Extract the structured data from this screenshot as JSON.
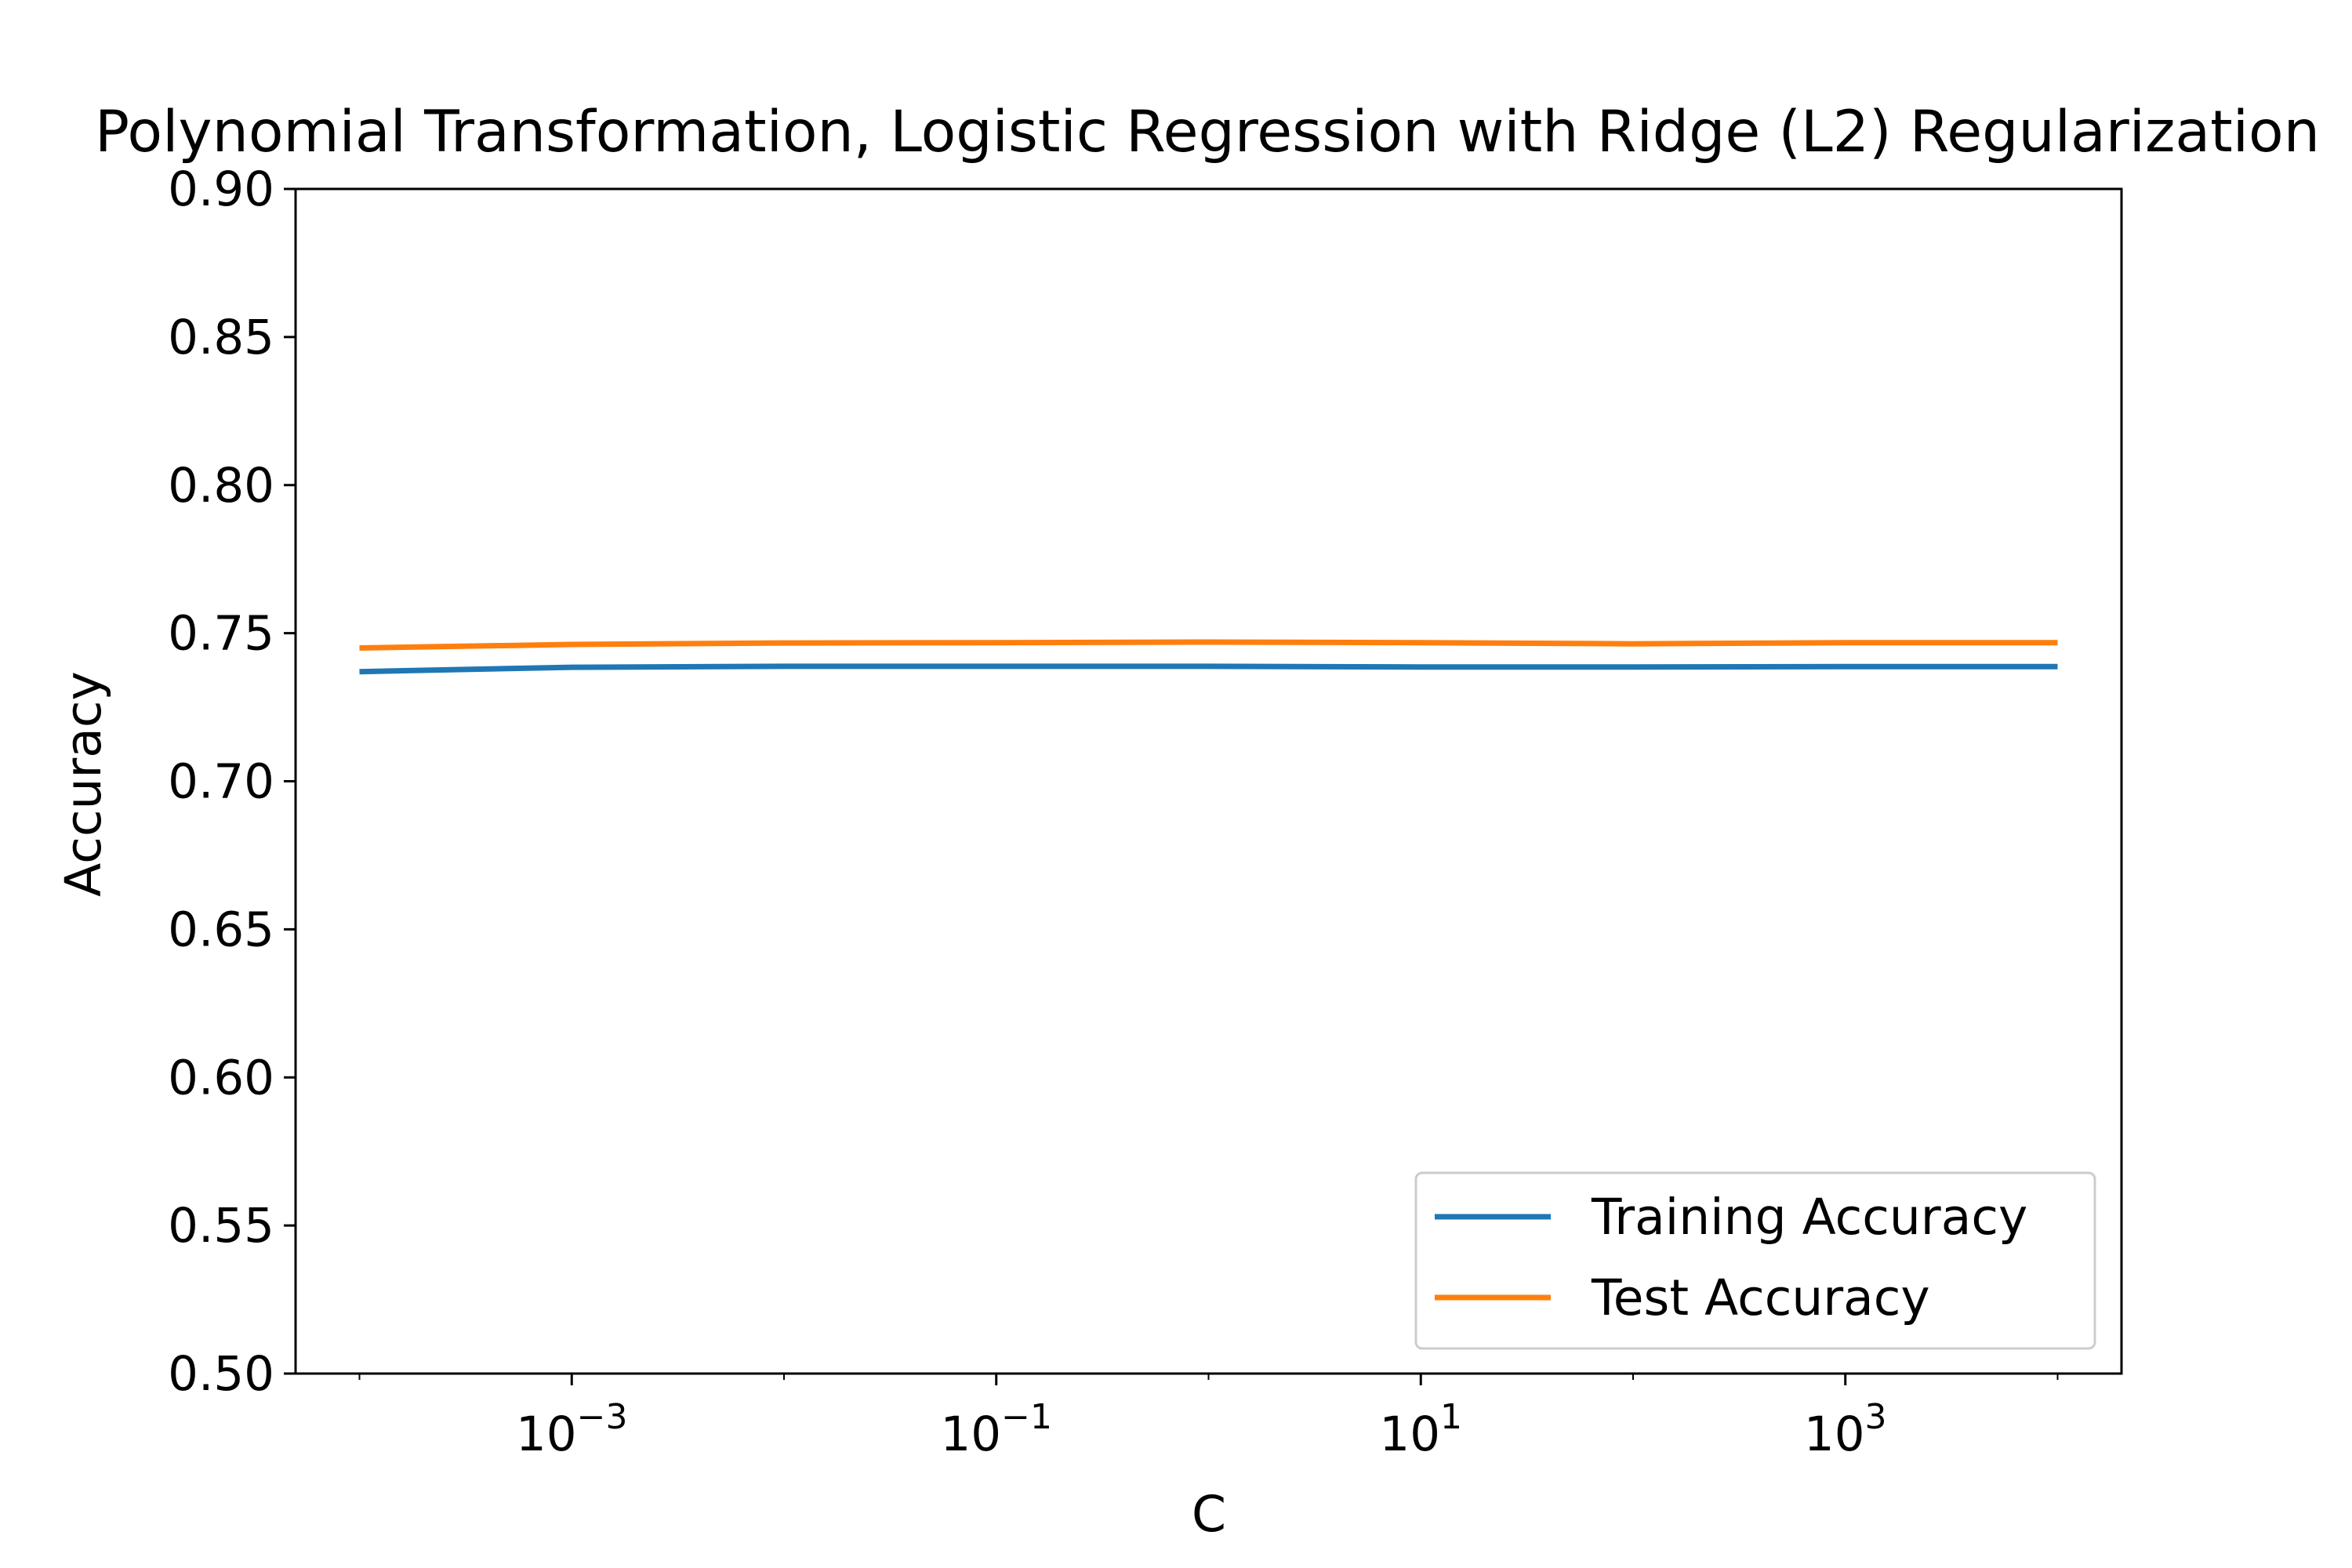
{
  "chart_data": {
    "type": "line",
    "title": "Polynomial Transformation, Logistic Regression with Ridge (L2) Regularization",
    "xlabel": "C",
    "ylabel": "Accuracy",
    "xscale": "log",
    "xlim": [
      5e-05,
      20000
    ],
    "ylim": [
      0.5,
      0.9
    ],
    "yticks": [
      "0.50",
      "0.55",
      "0.60",
      "0.65",
      "0.70",
      "0.75",
      "0.80",
      "0.85",
      "0.90"
    ],
    "xticks": [
      {
        "base": "10",
        "exp": "−3",
        "value": 0.001
      },
      {
        "base": "10",
        "exp": "−1",
        "value": 0.1
      },
      {
        "base": "10",
        "exp": "1",
        "value": 10
      },
      {
        "base": "10",
        "exp": "3",
        "value": 1000
      }
    ],
    "x": [
      0.0001,
      0.001,
      0.01,
      0.1,
      1,
      10,
      100,
      1000,
      10000
    ],
    "series": [
      {
        "name": "Training Accuracy",
        "color": "#1f77b4",
        "values": [
          0.737,
          0.7385,
          0.7388,
          0.7388,
          0.7388,
          0.7386,
          0.7386,
          0.7387,
          0.7387
        ]
      },
      {
        "name": "Test Accuracy",
        "color": "#ff7f0e",
        "values": [
          0.745,
          0.7462,
          0.7467,
          0.7468,
          0.747,
          0.7468,
          0.7464,
          0.7468,
          0.7468
        ]
      }
    ],
    "legend": {
      "position": "lower-right"
    },
    "grid": false
  }
}
